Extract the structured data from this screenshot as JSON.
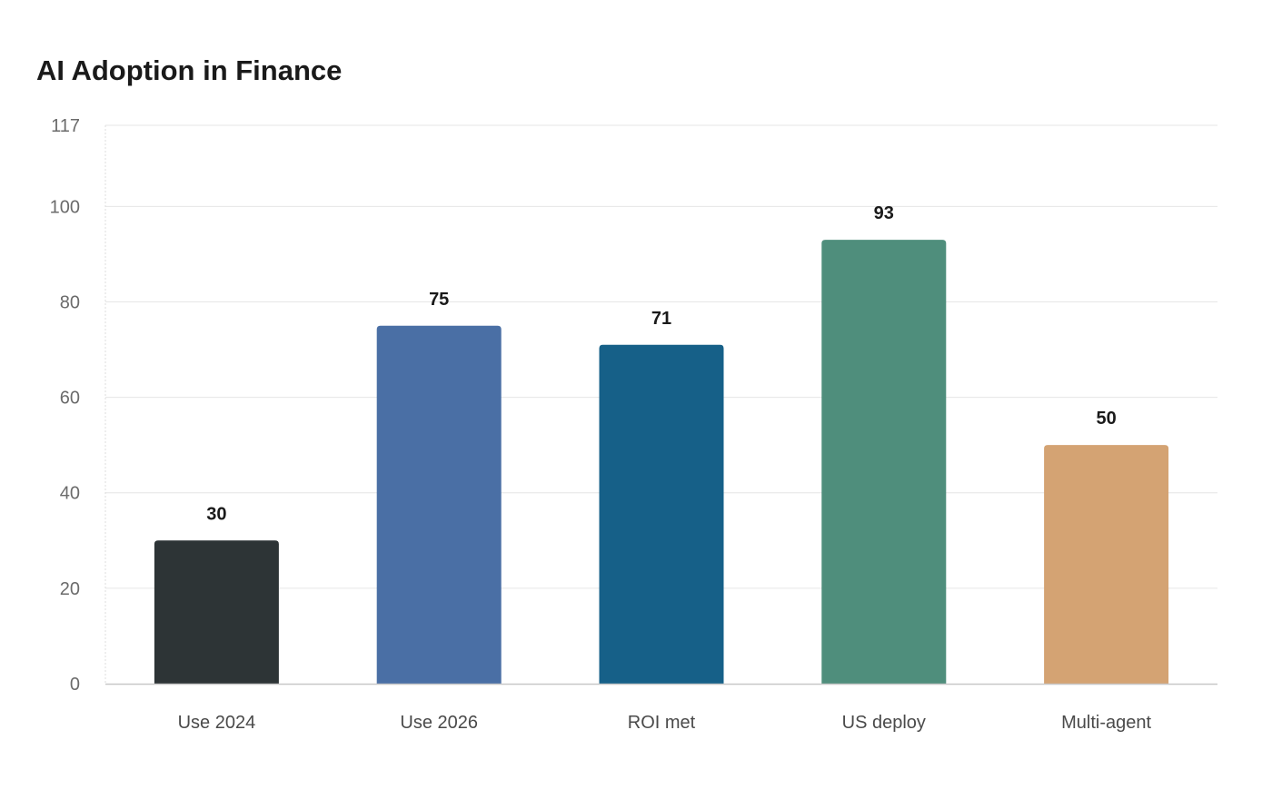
{
  "chart_data": {
    "type": "bar",
    "title": "AI Adoption in Finance",
    "categories": [
      "Use 2024",
      "Use 2026",
      "ROI met",
      "US deploy",
      "Multi-agent"
    ],
    "values": [
      30,
      75,
      71,
      93,
      50
    ],
    "colors": [
      "#2d3436",
      "#4a6fa5",
      "#166088",
      "#4f8e7c",
      "#d4a373"
    ],
    "xlabel": "",
    "ylabel": "",
    "ylim": [
      0,
      117
    ],
    "yticks": [
      0,
      20,
      40,
      60,
      80,
      100,
      117
    ],
    "grid": true,
    "data_labels": true
  }
}
